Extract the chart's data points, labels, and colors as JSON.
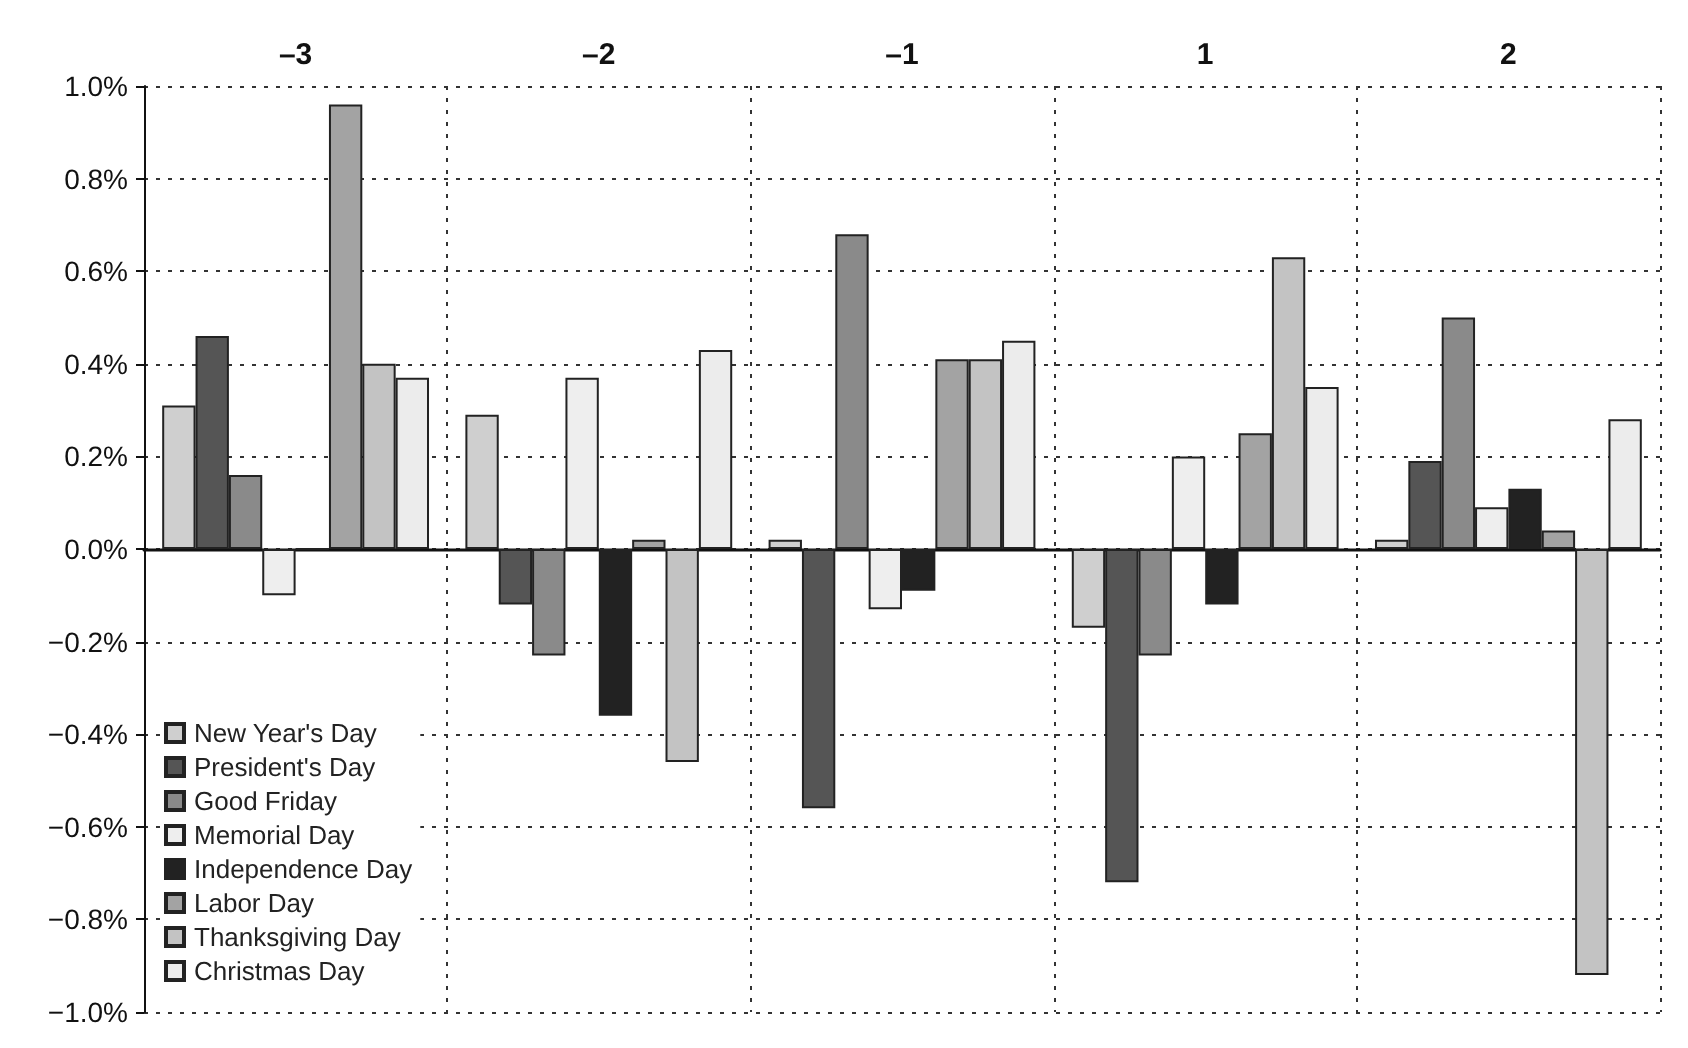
{
  "chart_data": {
    "type": "bar",
    "categories": [
      "–3",
      "–2",
      "–1",
      "1",
      "2"
    ],
    "series": [
      {
        "name": "New Year's Day",
        "color": "#cfcfcf",
        "values": [
          0.31,
          0.29,
          0.02,
          -0.17,
          0.02
        ]
      },
      {
        "name": "President's Day",
        "color": "#555555",
        "values": [
          0.46,
          -0.12,
          -0.56,
          -0.72,
          0.19
        ]
      },
      {
        "name": "Good Friday",
        "color": "#8a8a8a",
        "values": [
          0.16,
          -0.23,
          0.68,
          -0.23,
          0.5
        ]
      },
      {
        "name": "Memorial Day",
        "color": "#eeeeee",
        "values": [
          -0.1,
          0.37,
          -0.13,
          0.2,
          0.09
        ]
      },
      {
        "name": "Independence Day",
        "color": "#222222",
        "values": [
          0.0,
          -0.36,
          -0.09,
          -0.12,
          0.13
        ]
      },
      {
        "name": "Labor Day",
        "color": "#a3a3a3",
        "values": [
          0.96,
          0.02,
          0.41,
          0.25,
          0.04
        ]
      },
      {
        "name": "Thanksgiving Day",
        "color": "#c3c3c3",
        "values": [
          0.4,
          -0.46,
          0.41,
          0.63,
          -0.92
        ]
      },
      {
        "name": "Christmas Day",
        "color": "#ececec",
        "values": [
          0.37,
          0.43,
          0.45,
          0.35,
          0.28
        ]
      }
    ],
    "ylim": [
      -1.0,
      1.0
    ],
    "yticks": [
      {
        "value": -1.0,
        "label": "−1.0%"
      },
      {
        "value": -0.8,
        "label": "−0.8%"
      },
      {
        "value": -0.6,
        "label": "−0.6%"
      },
      {
        "value": -0.4,
        "label": "−0.4%"
      },
      {
        "value": -0.2,
        "label": "−0.2%"
      },
      {
        "value": 0.0,
        "label": "0.0%"
      },
      {
        "value": 0.2,
        "label": "0.2%"
      },
      {
        "value": 0.4,
        "label": "0.4%"
      },
      {
        "value": 0.6,
        "label": "0.6%"
      },
      {
        "value": 0.8,
        "label": "0.8%"
      },
      {
        "value": 1.0,
        "label": "1.0%"
      }
    ],
    "grid": true,
    "legend": "bottom left"
  }
}
